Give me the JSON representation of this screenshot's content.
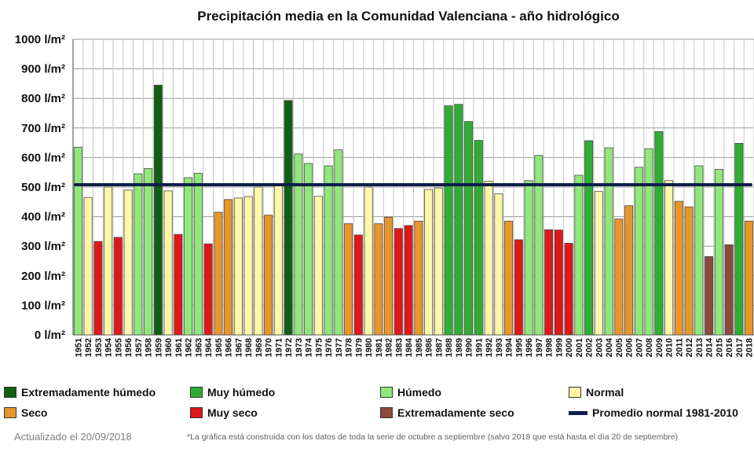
{
  "title": "Precipitación media en la Comunidad Valenciana - año hidrológico",
  "updated": "Actualizado  el 20/09/2018",
  "footnote": "*La gráfica está construida con los datos de toda la serie de octubre a septiembre (salvo 2018 que está hasta el día 20 de septiembre)",
  "colors": {
    "extremadamente_humedo": "#0e6112",
    "muy_humedo": "#2fae34",
    "humedo": "#90e87a",
    "normal": "#fff7a8",
    "seco": "#e8962a",
    "muy_seco": "#e01818",
    "extremadamente_seco": "#8b4a3c",
    "promedio": "#0d1f4a"
  },
  "legend": [
    {
      "label": "Extremadamente húmedo",
      "key": "extremadamente_humedo",
      "kind": "box"
    },
    {
      "label": "Muy húmedo",
      "key": "muy_humedo",
      "kind": "box"
    },
    {
      "label": "Húmedo",
      "key": "humedo",
      "kind": "box"
    },
    {
      "label": "Normal",
      "key": "normal",
      "kind": "box"
    },
    {
      "label": "Seco",
      "key": "seco",
      "kind": "box"
    },
    {
      "label": "Muy seco",
      "key": "muy_seco",
      "kind": "box"
    },
    {
      "label": "Extremadamente seco",
      "key": "extremadamente_seco",
      "kind": "box"
    },
    {
      "label": "Promedio normal 1981-2010",
      "key": "promedio",
      "kind": "line"
    }
  ],
  "chart_data": {
    "type": "bar",
    "title": "Precipitación media en la Comunidad Valenciana - año hidrológico",
    "xlabel": "",
    "ylabel": "",
    "ylim": [
      0,
      1000
    ],
    "y_ticks": [
      "0 l/m²",
      "100 l/m²",
      "200 l/m²",
      "300 l/m²",
      "400 l/m²",
      "500 l/m²",
      "600 l/m²",
      "700 l/m²",
      "800 l/m²",
      "900 l/m²",
      "1000 l/m²"
    ],
    "grid": true,
    "legend_position": "bottom",
    "reference_line": {
      "name": "Promedio normal 1981-2010",
      "value": 508
    },
    "categories": [
      "1951",
      "1952",
      "1953",
      "1954",
      "1955",
      "1956",
      "1957",
      "1958",
      "1959",
      "1960",
      "1961",
      "1962",
      "1963",
      "1964",
      "1965",
      "1966",
      "1967",
      "1968",
      "1969",
      "1970",
      "1971",
      "1972",
      "1973",
      "1974",
      "1975",
      "1976",
      "1977",
      "1978",
      "1979",
      "1980",
      "1981",
      "1982",
      "1983",
      "1984",
      "1985",
      "1986",
      "1987",
      "1988",
      "1989",
      "1990",
      "1991",
      "1992",
      "1993",
      "1994",
      "1995",
      "1996",
      "1997",
      "1998",
      "1999",
      "2000",
      "2001",
      "2002",
      "2003",
      "2004",
      "2005",
      "2006",
      "2007",
      "2008",
      "2009",
      "2010",
      "2011",
      "2012",
      "2013",
      "2014",
      "2015",
      "2016",
      "2017",
      "2018"
    ],
    "values": [
      635,
      465,
      316,
      500,
      330,
      490,
      545,
      563,
      845,
      487,
      340,
      532,
      547,
      308,
      415,
      458,
      463,
      468,
      500,
      405,
      510,
      793,
      612,
      580,
      469,
      572,
      626,
      376,
      338,
      500,
      376,
      398,
      360,
      370,
      385,
      492,
      497,
      775,
      780,
      722,
      658,
      520,
      477,
      385,
      322,
      522,
      607,
      356,
      355,
      310,
      540,
      657,
      485,
      633,
      392,
      437,
      567,
      630,
      688,
      522,
      452,
      433,
      572,
      265,
      560,
      305,
      648,
      385
    ],
    "classes": [
      "humedo",
      "normal",
      "muy_seco",
      "normal",
      "muy_seco",
      "normal",
      "humedo",
      "humedo",
      "extremadamente_humedo",
      "normal",
      "muy_seco",
      "humedo",
      "humedo",
      "muy_seco",
      "seco",
      "seco",
      "normal",
      "normal",
      "normal",
      "seco",
      "normal",
      "extremadamente_humedo",
      "humedo",
      "humedo",
      "normal",
      "humedo",
      "humedo",
      "seco",
      "muy_seco",
      "normal",
      "seco",
      "seco",
      "muy_seco",
      "muy_seco",
      "seco",
      "normal",
      "normal",
      "muy_humedo",
      "muy_humedo",
      "muy_humedo",
      "muy_humedo",
      "normal",
      "normal",
      "seco",
      "muy_seco",
      "humedo",
      "humedo",
      "muy_seco",
      "muy_seco",
      "muy_seco",
      "humedo",
      "muy_humedo",
      "normal",
      "humedo",
      "seco",
      "seco",
      "humedo",
      "humedo",
      "muy_humedo",
      "normal",
      "seco",
      "seco",
      "humedo",
      "extremadamente_seco",
      "humedo",
      "extremadamente_seco",
      "muy_humedo",
      "seco"
    ]
  }
}
